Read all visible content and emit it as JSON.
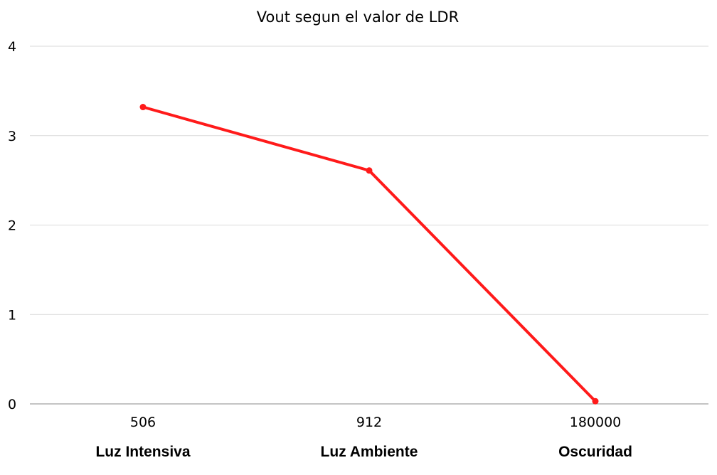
{
  "chart_data": {
    "type": "line",
    "title": "Vout segun el valor de LDR",
    "categories": [
      "506",
      "912",
      "180000"
    ],
    "category_labels": [
      "Luz Intensiva",
      "Luz Ambiente",
      "Oscuridad"
    ],
    "series": [
      {
        "values": [
          3.32,
          2.61,
          0.03
        ]
      }
    ],
    "ylim": [
      0,
      4
    ],
    "yticks": [
      "0",
      "1",
      "2",
      "3",
      "4"
    ],
    "xlabel": "",
    "ylabel": "",
    "grid": true,
    "legend": "none",
    "colors": {
      "line": "#ff1a1a",
      "grid": "#d9d9d9",
      "axis": "#888888"
    }
  }
}
